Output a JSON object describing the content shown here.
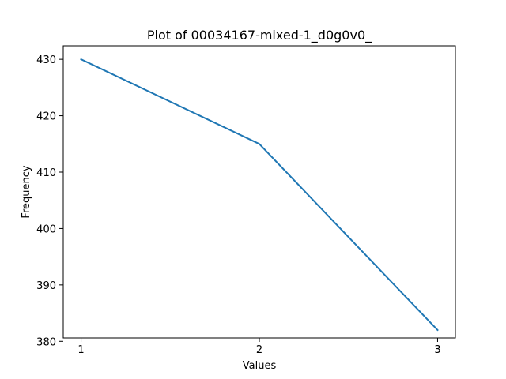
{
  "chart_data": {
    "type": "line",
    "title": "Plot of 00034167-mixed-1_d0g0v0_",
    "xlabel": "Values",
    "ylabel": "Frequency",
    "x": [
      1,
      2,
      3
    ],
    "series": [
      {
        "values": [
          430,
          415,
          382
        ],
        "color": "#1f77b4"
      }
    ],
    "xticks": [
      1,
      2,
      3
    ],
    "yticks": [
      380,
      390,
      400,
      410,
      420,
      430
    ],
    "xlim": [
      0.9,
      3.1
    ],
    "ylim": [
      380.6,
      432.4
    ],
    "grid": false,
    "legend": "none"
  }
}
